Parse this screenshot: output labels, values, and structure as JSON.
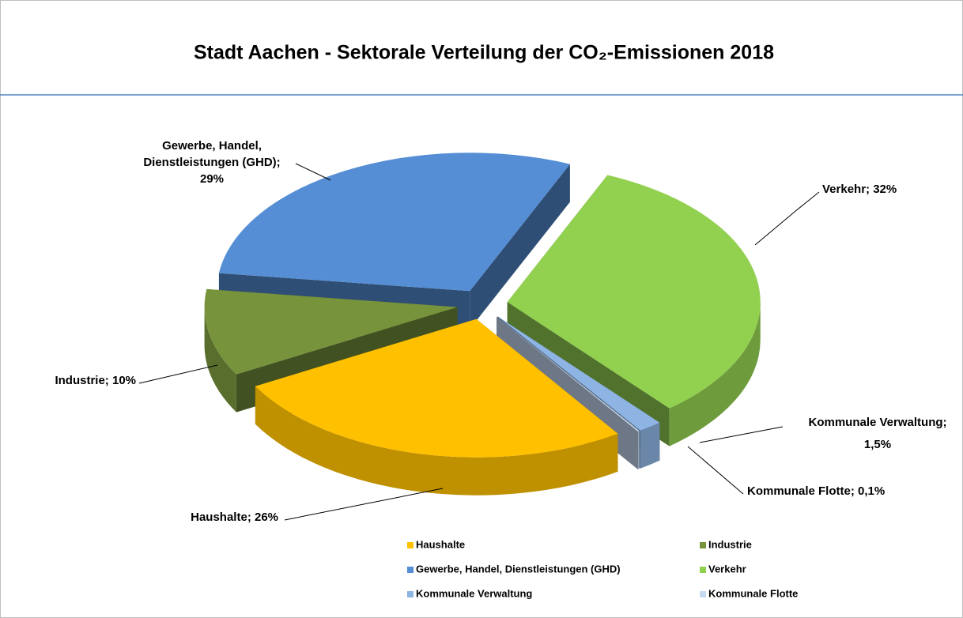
{
  "chart_data": {
    "type": "pie",
    "title": "Stadt Aachen - Sektorale Verteilung der CO₂-Emissionen 2018",
    "categories": [
      "Haushalte",
      "Industrie",
      "Gewerbe, Handel, Dienstleistungen (GHD)",
      "Verkehr",
      "Kommunale Verwaltung",
      "Kommunale Flotte"
    ],
    "values": [
      26,
      10,
      29,
      32,
      1.5,
      0.1
    ],
    "value_labels": [
      "Haushalte; 26%",
      "Industrie; 10%",
      "Gewerbe, Handel,\nDienstleistungen (GHD);\n29%",
      "Verkehr; 32%",
      "Kommunale Verwaltung;\n1,5%",
      "Kommunale Flotte;   0,1%"
    ],
    "colors": [
      "#ffc000",
      "#77933c",
      "#558ed5",
      "#92d050",
      "#8db4e2",
      "#c6d9f1"
    ],
    "legend": "bottom"
  }
}
